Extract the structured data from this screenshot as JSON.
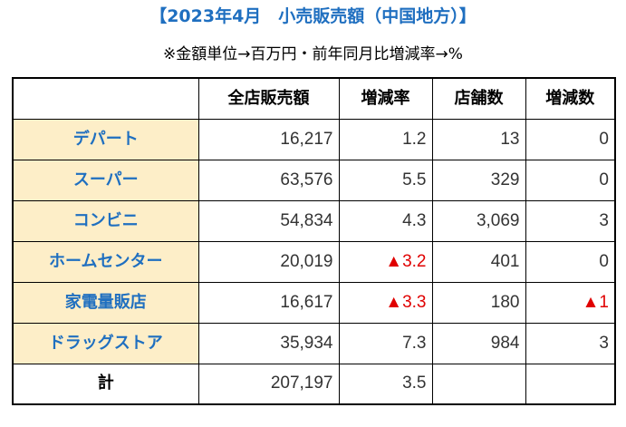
{
  "title": "【2023年4月　小売販売額（中国地方）】",
  "unit_note": "※金額単位→百万円・前年同月比増減率→%",
  "table": {
    "headers": [
      "",
      "全店販売額",
      "増減率",
      "店舗数",
      "増減数"
    ],
    "rows": [
      {
        "category": "デパート",
        "sales": "16,217",
        "change_rate": "1.2",
        "stores": "13",
        "store_change": "0"
      },
      {
        "category": "スーパー",
        "sales": "63,576",
        "change_rate": "5.5",
        "stores": "329",
        "store_change": "0"
      },
      {
        "category": "コンビニ",
        "sales": "54,834",
        "change_rate": "4.3",
        "stores": "3,069",
        "store_change": "3"
      },
      {
        "category": "ホームセンター",
        "sales": "20,019",
        "change_rate": "▲3.2",
        "stores": "401",
        "store_change": "0"
      },
      {
        "category": "家電量販店",
        "sales": "16,617",
        "change_rate": "▲3.3",
        "stores": "180",
        "store_change": "▲1"
      },
      {
        "category": "ドラッグストア",
        "sales": "35,934",
        "change_rate": "7.3",
        "stores": "984",
        "store_change": "3"
      }
    ],
    "total": {
      "label": "計",
      "sales": "207,197",
      "change_rate": "3.5",
      "stores": "",
      "store_change": ""
    }
  }
}
